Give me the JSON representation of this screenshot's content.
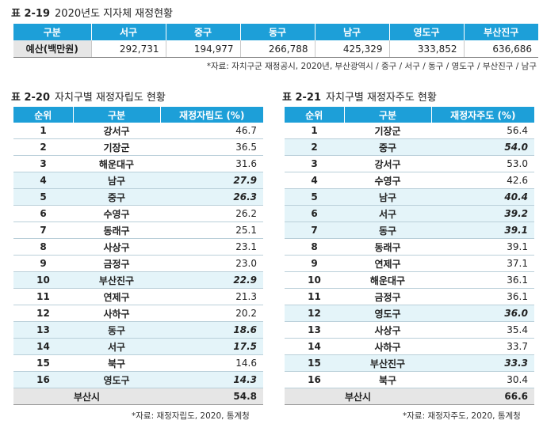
{
  "table19": {
    "number": "표 2-19",
    "title": "2020년도 지자체 재정현황",
    "headers": [
      "구분",
      "서구",
      "중구",
      "동구",
      "남구",
      "영도구",
      "부산진구"
    ],
    "row_label": "예산(백만원)",
    "values": [
      "292,731",
      "194,977",
      "266,788",
      "425,329",
      "333,852",
      "636,686"
    ],
    "source": "*자료: 자치구군 재정공시, 2020년, 부산광역시 / 중구 / 서구 / 동구 / 영도구 / 부산진구 / 남구"
  },
  "table20": {
    "number": "표 2-20",
    "title": "자치구별 재정자립도 현황",
    "headers": [
      "순위",
      "구분",
      "재정자립도 (%)"
    ],
    "rows": [
      {
        "rank": "1",
        "name": "강서구",
        "value": "46.7",
        "hl": false
      },
      {
        "rank": "2",
        "name": "기장군",
        "value": "36.5",
        "hl": false
      },
      {
        "rank": "3",
        "name": "해운대구",
        "value": "31.6",
        "hl": false
      },
      {
        "rank": "4",
        "name": "남구",
        "value": "27.9",
        "hl": true
      },
      {
        "rank": "5",
        "name": "중구",
        "value": "26.3",
        "hl": true
      },
      {
        "rank": "6",
        "name": "수영구",
        "value": "26.2",
        "hl": false
      },
      {
        "rank": "7",
        "name": "동래구",
        "value": "25.1",
        "hl": false
      },
      {
        "rank": "8",
        "name": "사상구",
        "value": "23.1",
        "hl": false
      },
      {
        "rank": "9",
        "name": "금정구",
        "value": "23.0",
        "hl": false
      },
      {
        "rank": "10",
        "name": "부산진구",
        "value": "22.9",
        "hl": true
      },
      {
        "rank": "11",
        "name": "연제구",
        "value": "21.3",
        "hl": false
      },
      {
        "rank": "12",
        "name": "사하구",
        "value": "20.2",
        "hl": false
      },
      {
        "rank": "13",
        "name": "동구",
        "value": "18.6",
        "hl": true
      },
      {
        "rank": "14",
        "name": "서구",
        "value": "17.5",
        "hl": true
      },
      {
        "rank": "15",
        "name": "북구",
        "value": "14.6",
        "hl": false
      },
      {
        "rank": "16",
        "name": "영도구",
        "value": "14.3",
        "hl": true
      }
    ],
    "total_label": "부산시",
    "total_value": "54.8",
    "source": "*자료: 재정자립도, 2020, 통계청"
  },
  "table21": {
    "number": "표 2-21",
    "title": "자치구별 재정자주도 현황",
    "headers": [
      "순위",
      "구분",
      "재정자주도 (%)"
    ],
    "rows": [
      {
        "rank": "1",
        "name": "기장군",
        "value": "56.4",
        "hl": false
      },
      {
        "rank": "2",
        "name": "중구",
        "value": "54.0",
        "hl": true
      },
      {
        "rank": "3",
        "name": "강서구",
        "value": "53.0",
        "hl": false
      },
      {
        "rank": "4",
        "name": "수영구",
        "value": "42.6",
        "hl": false
      },
      {
        "rank": "5",
        "name": "남구",
        "value": "40.4",
        "hl": true
      },
      {
        "rank": "6",
        "name": "서구",
        "value": "39.2",
        "hl": true
      },
      {
        "rank": "7",
        "name": "동구",
        "value": "39.1",
        "hl": true
      },
      {
        "rank": "8",
        "name": "동래구",
        "value": "39.1",
        "hl": false
      },
      {
        "rank": "9",
        "name": "연제구",
        "value": "37.1",
        "hl": false
      },
      {
        "rank": "10",
        "name": "해운대구",
        "value": "36.1",
        "hl": false
      },
      {
        "rank": "11",
        "name": "금정구",
        "value": "36.1",
        "hl": false
      },
      {
        "rank": "12",
        "name": "영도구",
        "value": "36.0",
        "hl": true
      },
      {
        "rank": "13",
        "name": "사상구",
        "value": "35.4",
        "hl": false
      },
      {
        "rank": "14",
        "name": "사하구",
        "value": "33.7",
        "hl": false
      },
      {
        "rank": "15",
        "name": "부산진구",
        "value": "33.3",
        "hl": true
      },
      {
        "rank": "16",
        "name": "북구",
        "value": "30.4",
        "hl": false
      }
    ],
    "total_label": "부산시",
    "total_value": "66.6",
    "source": "*자료: 재정자주도, 2020, 통계청"
  }
}
